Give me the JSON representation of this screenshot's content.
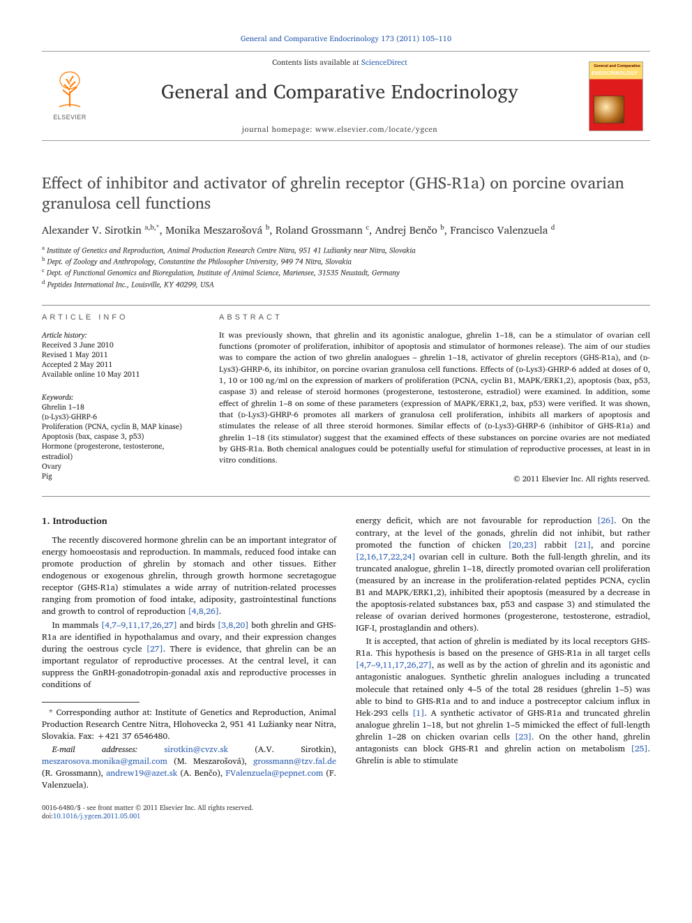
{
  "citation": "General and Comparative Endocrinology 173 (2011) 105–110",
  "masthead": {
    "contents_prefix": "Contents lists available at ",
    "contents_link": "ScienceDirect",
    "journal": "General and Comparative Endocrinology",
    "homepage": "journal homepage: www.elsevier.com/locate/ygcen",
    "publisher_word": "ELSEVIER",
    "cover_top": "General and Comparative",
    "cover_big": "ENDOCRINOLOGY"
  },
  "title": "Effect of inhibitor and activator of ghrelin receptor (GHS-R1a) on porcine ovarian granulosa cell functions",
  "authors_html": "Alexander V. Sirotkin <sup>a,b,*</sup>, Monika Meszarošová <sup>b</sup>, Roland Grossmann <sup>c</sup>, Andrej Benčo <sup>b</sup>, Francisco Valenzuela <sup>d</sup>",
  "affiliations": [
    {
      "sup": "a",
      "text": "Institute of Genetics and Reproduction, Animal Production Research Centre Nitra, 951 41 Lužianky near Nitra, Slovakia"
    },
    {
      "sup": "b",
      "text": "Dept. of Zoology and Anthropology, Constantine the Philosopher University, 949 74 Nitra, Slovakia"
    },
    {
      "sup": "c",
      "text": "Dept. of Functional Genomics and Bioregulation, Institute of Animal Science, Mariensee, 31535 Neustadt, Germany"
    },
    {
      "sup": "d",
      "text": "Peptides International Inc., Louisville, KY 40299, USA"
    }
  ],
  "info_head": "ARTICLE INFO",
  "abs_head": "ABSTRACT",
  "history": {
    "label": "Article history:",
    "lines": [
      "Received 3 June 2010",
      "Revised 1 May 2011",
      "Accepted 2 May 2011",
      "Available online 10 May 2011"
    ]
  },
  "keywords": {
    "label": "Keywords:",
    "items": [
      "Ghrelin 1–18",
      "(ᴅ-Lys3)-GHRP-6",
      "Proliferation (PCNA, cyclin B, MAP kinase)",
      "Apoptosis (bax, caspase 3, p53)",
      "Hormone (progesterone, testosterone, estradiol)",
      "Ovary",
      "Pig"
    ]
  },
  "abstract": "It was previously shown, that ghrelin and its agonistic analogue, ghrelin 1–18, can be a stimulator of ovarian cell functions (promoter of proliferation, inhibitor of apoptosis and stimulator of hormones release). The aim of our studies was to compare the action of two ghrelin analogues – ghrelin 1–18, activator of ghrelin receptors (GHS-R1a), and (ᴅ-Lys3)-GHRP-6, its inhibitor, on porcine ovarian granulosa cell functions. Effects of (ᴅ-Lys3)-GHRP-6 added at doses of 0, 1, 10 or 100 ng/ml on the expression of markers of proliferation (PCNA, cyclin B1, MAPK/ERK1,2), apoptosis (bax, p53, caspase 3) and release of steroid hormones (progesterone, testosterone, estradiol) were examined. In addition, some effect of ghrelin 1–8 on some of these parameters (expression of MAPK/ERK1,2, bax, p53) were verified. It was shown, that (ᴅ-Lys3)-GHRP-6 promotes all markers of granulosa cell proliferation, inhibits all markers of apoptosis and stimulates the release of all three steroid hormones. Similar effects of (ᴅ-Lys3)-GHRP-6 (inhibitor of GHS-R1a) and ghrelin 1–18 (its stimulator) suggest that the examined effects of these substances on porcine ovaries are not mediated by GHS-R1a. Both chemical analogues could be potentially useful for stimulation of reproductive processes, at least in in vitro conditions.",
  "abs_copyright": "© 2011 Elsevier Inc. All rights reserved.",
  "section1": "1. Introduction",
  "paragraphs": [
    "The recently discovered hormone ghrelin can be an important integrator of energy homoeostasis and reproduction. In mammals, reduced food intake can promote production of ghrelin by stomach and other tissues. Either endogenous or exogenous ghrelin, through growth hormone secretagogue receptor (GHS-R1a) stimulates a wide array of nutrition-related processes ranging from promotion of food intake, adiposity, gastrointestinal functions and growth to control of reproduction ",
    "In mammals ",
    "energy deficit, which are not favourable for reproduction ",
    "It is accepted, that action of ghrelin is mediated by its local receptors GHS-R1a. This hypothesis is based on the presence of GHS-R1a in all target cells "
  ],
  "ref_groups": {
    "r1": "[4,8,26]",
    "r2": "[4,7–9,11,17,26,27]",
    "r3": "[3,8,20]",
    "r4": "[27]",
    "r5": "[26]",
    "r6": "[20,23]",
    "r7": "[21]",
    "r8": "[2,16,17,22,24]",
    "r9": "[4,7–9,11,17,26,27]",
    "r10": "[23]",
    "r11": "[1]",
    "r12": "[25]"
  },
  "tail_text": {
    "p2_tail_a": " and birds ",
    "p2_tail_b": " both ghrelin and GHS-R1a are identified in hypothalamus and ovary, and their expression changes during the oestrous cycle ",
    "p2_tail_c": ". There is evidence, that ghrelin can be an important regulator of reproductive processes. At the central level, it can suppress the GnRH-gonadotropin-gonadal axis and reproductive processes in conditions of ",
    "p3_tail_a": ". On the contrary, at the level of the gonads, ghrelin did not inhibit, but rather promoted the function of chicken ",
    "p3_tail_b": " rabbit ",
    "p3_tail_c": ", and porcine ",
    "p3_tail_d": " ovarian cell in culture. Both the full-length ghrelin, and its truncated analogue, ghrelin 1–18, directly promoted ovarian cell proliferation (measured by an increase in the proliferation-related peptides PCNA, cyclin B1 and MAPK/ERK1,2), inhibited their apoptosis (measured by a decrease in the apoptosis-related substances bax, p53 and caspase 3) and stimulated the release of ovarian derived hormones (progesterone, testosterone, estradiol, IGF-I, prostaglandin and others).",
    "p4_tail_a": ", as well as by the action of ghrelin and its agonistic and antagonistic analogues. Synthetic ghrelin analogues including a truncated molecule that retained only 4–5 of the total 28 residues (ghrelin 1–5) was able to bind to GHS-R1a and to and induce a postreceptor calcium influx in Hek-293 cells ",
    "p4_tail_b": ". A synthetic activator of GHS-R1a and truncated ghrelin analogue ghrelin 1–18, but not ghrelin 1–5 mimicked the effect of full-length ghrelin 1–28 on chicken ovarian cells ",
    "p4_tail_c": ". On the other hand, ghrelin antagonists can block GHS-R1 and ghrelin action on metabolism ",
    "p4_tail_d": ". Ghrelin is able to stimulate"
  },
  "corresp": {
    "star": "*",
    "text": "Corresponding author at: Institute of Genetics and Reproduction, Animal Production Research Centre Nitra, Hlohovecka 2, 951 41 Lužianky near Nitra, Slovakia. Fax: +421 37 6546480.",
    "email_label": "E-mail addresses:",
    "emails": [
      {
        "addr": "sirotkin@cvzv.sk",
        "who": " (A.V. Sirotkin), "
      },
      {
        "addr": "meszarosova.monika@gmail.com",
        "who": " (M. Meszarošová), "
      },
      {
        "addr": "grossmann@tzv.fal.de",
        "who": " (R. Grossmann), "
      },
      {
        "addr": "andrew19@azet.sk",
        "who": " (A. Benčo), "
      },
      {
        "addr": "FValenzuela@pepnet.com",
        "who": " (F. Valenzuela)."
      }
    ]
  },
  "footer": {
    "issn": "0016-6480/$ - see front matter © 2011 Elsevier Inc. All rights reserved.",
    "doi_label": "doi:",
    "doi": "10.1016/j.ygcen.2011.05.001"
  },
  "colors": {
    "link": "#2a5db0",
    "text": "#1a1a1a",
    "rule": "#888888",
    "elsevier_orange": "#ff7a00",
    "cover_yellow": "#ffd96b",
    "cover_red": "#e01b1b"
  }
}
